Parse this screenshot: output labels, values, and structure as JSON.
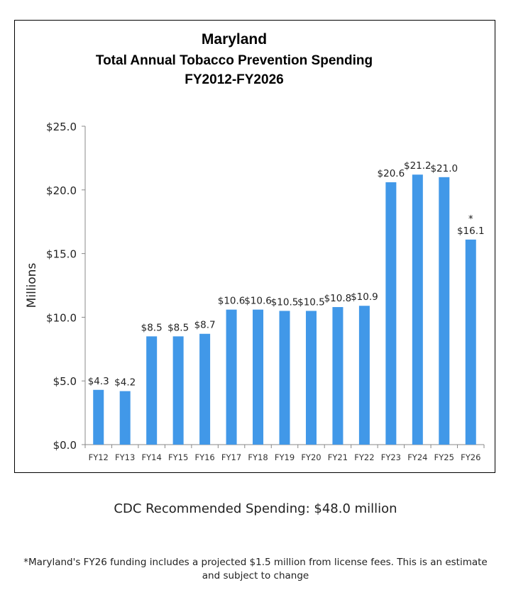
{
  "chart_data": {
    "type": "bar",
    "title": "Maryland",
    "subtitle": "Total Annual Tobacco Prevention Spending",
    "subtitle2": "FY2012-FY2026",
    "xlabel": "",
    "ylabel": "Millions",
    "ylim": [
      0,
      25
    ],
    "yticks": [
      0,
      5,
      10,
      15,
      20,
      25
    ],
    "ytick_labels": [
      "$0.0",
      "$5.0",
      "$10.0",
      "$15.0",
      "$20.0",
      "$25.0"
    ],
    "categories": [
      "FY12",
      "FY13",
      "FY14",
      "FY15",
      "FY16",
      "FY17",
      "FY18",
      "FY19",
      "FY20",
      "FY21",
      "FY22",
      "FY23",
      "FY24",
      "FY25",
      "FY26"
    ],
    "values": [
      4.3,
      4.2,
      8.5,
      8.5,
      8.7,
      10.6,
      10.6,
      10.5,
      10.5,
      10.8,
      10.9,
      20.6,
      21.2,
      21.0,
      16.1
    ],
    "data_labels": [
      "$4.3",
      "$4.2",
      "$8.5",
      "$8.5",
      "$8.7",
      "$10.6",
      "$10.6",
      "$10.5",
      "$10.5",
      "$10.8",
      "$10.9",
      "$20.6",
      "$21.2",
      "$21.0",
      "$16.1"
    ],
    "annotations": [
      {
        "category": "FY26",
        "text": "*"
      }
    ],
    "grid": false,
    "legend": "none",
    "bar_color": "#4198E8"
  },
  "footer": {
    "cdc": "CDC Recommended Spending: $48.0 million",
    "note": "*Maryland's FY26 funding includes a projected $1.5 million from license fees. This is an estimate and subject to change"
  }
}
